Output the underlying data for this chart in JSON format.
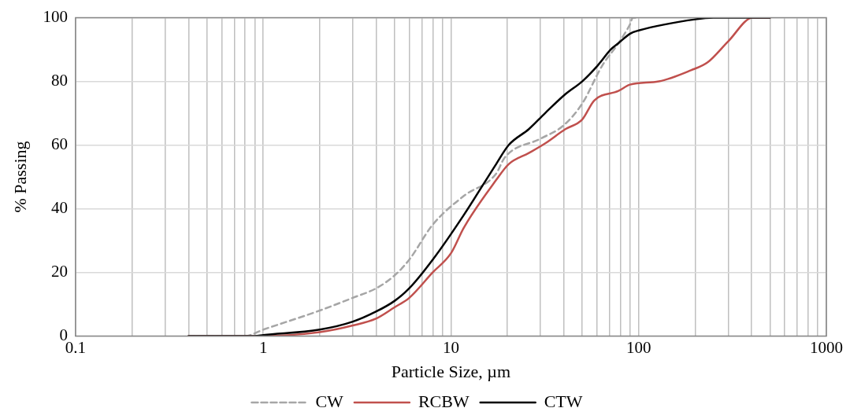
{
  "chart_data": {
    "type": "line",
    "xlabel": "Particle Size, µm",
    "ylabel": "% Passing",
    "log": "x",
    "xlim": [
      0.1,
      1000
    ],
    "xticks": [
      0.1,
      {
        "value": 0.2,
        "label": null
      },
      {
        "value": 0.3,
        "label": null
      },
      {
        "value": 0.4,
        "label": null
      },
      {
        "value": 0.5,
        "label": null
      },
      {
        "value": 0.6,
        "label": null
      },
      {
        "value": 0.7,
        "label": null
      },
      {
        "value": 0.8,
        "label": null
      },
      {
        "value": 0.9,
        "label": null
      },
      1,
      {
        "value": 2,
        "label": null
      },
      {
        "value": 3,
        "label": null
      },
      {
        "value": 4,
        "label": null
      },
      {
        "value": 5,
        "label": null
      },
      {
        "value": 6,
        "label": null
      },
      {
        "value": 7,
        "label": null
      },
      {
        "value": 8,
        "label": null
      },
      {
        "value": 9,
        "label": null
      },
      10,
      {
        "value": 20,
        "label": null
      },
      {
        "value": 30,
        "label": null
      },
      {
        "value": 40,
        "label": null
      },
      {
        "value": 50,
        "label": null
      },
      {
        "value": 60,
        "label": null
      },
      {
        "value": 70,
        "label": null
      },
      {
        "value": 80,
        "label": null
      },
      {
        "value": 90,
        "label": null
      },
      100,
      {
        "value": 200,
        "label": null
      },
      {
        "value": 300,
        "label": null
      },
      {
        "value": 400,
        "label": null
      },
      {
        "value": 500,
        "label": null
      },
      {
        "value": 600,
        "label": null
      },
      {
        "value": 700,
        "label": null
      },
      {
        "value": 800,
        "label": null
      },
      {
        "value": 900,
        "label": null
      },
      1000
    ],
    "ylim": [
      0,
      100
    ],
    "yticks": [
      0,
      20,
      40,
      60,
      80,
      100
    ],
    "grid": true,
    "legend": "bottom",
    "marker": "none",
    "series": [
      {
        "name": "CW",
        "color": "#a6a6a6",
        "line_style": "dashed",
        "x": [
          0.4,
          0.8,
          1,
          2,
          3,
          4,
          5,
          6,
          8,
          11.7,
          17.4,
          19.3,
          30,
          39.5,
          50,
          64,
          78,
          90,
          93,
          100
        ],
        "values": [
          0,
          0,
          2,
          8,
          12,
          15,
          19,
          24,
          35,
          44,
          51,
          56,
          62,
          66,
          73,
          85,
          92,
          98,
          100,
          100
        ]
      },
      {
        "name": "RCBW",
        "color": "#c0504d",
        "line_style": "solid",
        "x": [
          0.4,
          1,
          2,
          3,
          4,
          5,
          6,
          8,
          10,
          11.7,
          17.4,
          20.3,
          26,
          31.7,
          40.7,
          50,
          58,
          78,
          90,
          128,
          190,
          233,
          300,
          405,
          500
        ],
        "values": [
          0,
          0,
          1.2,
          3.3,
          5.5,
          9,
          12,
          20,
          26,
          34,
          49,
          54,
          57.5,
          60.5,
          65,
          68,
          74,
          77,
          79,
          80,
          83.5,
          86,
          92.6,
          100,
          100
        ]
      },
      {
        "name": "CTW",
        "color": "#000000",
        "line_style": "solid",
        "x": [
          0.4,
          0.9,
          1,
          2,
          3,
          4,
          5,
          6,
          8,
          11.7,
          17.4,
          20.3,
          26,
          31.7,
          40.7,
          50,
          60.5,
          70.9,
          78,
          90,
          100,
          200,
          250,
          500
        ],
        "values": [
          0,
          0,
          0.3,
          2,
          4.5,
          7.7,
          11,
          15,
          24,
          38,
          54,
          60,
          65,
          70,
          76,
          80,
          85,
          90,
          92,
          95,
          96,
          99.5,
          100,
          100
        ]
      }
    ]
  }
}
